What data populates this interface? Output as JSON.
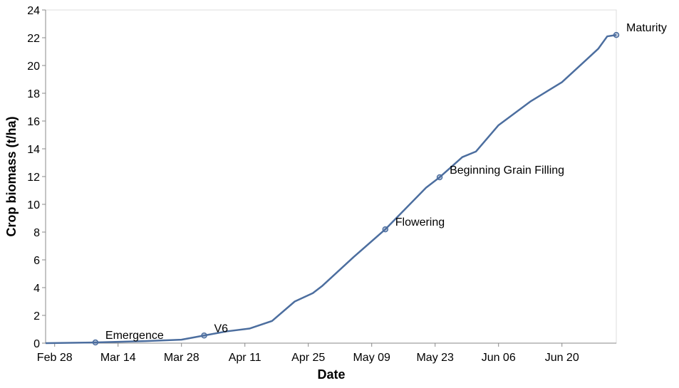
{
  "chart_data": {
    "type": "line",
    "x_label": "Date",
    "y_label": "Crop biomass (t/ha)",
    "xlim": [
      "02-26",
      "07-02"
    ],
    "ylim": [
      0,
      24
    ],
    "xticks": [
      {
        "value": "02-28",
        "label": "Feb 28"
      },
      {
        "value": "03-14",
        "label": "Mar 14"
      },
      {
        "value": "03-28",
        "label": "Mar 28"
      },
      {
        "value": "04-11",
        "label": "Apr 11"
      },
      {
        "value": "04-25",
        "label": "Apr 25"
      },
      {
        "value": "05-09",
        "label": "May 09"
      },
      {
        "value": "05-23",
        "label": "May 23"
      },
      {
        "value": "06-06",
        "label": "Jun 06"
      },
      {
        "value": "06-20",
        "label": "Jun 20"
      }
    ],
    "yticks": [
      0,
      2,
      4,
      6,
      8,
      10,
      12,
      14,
      16,
      18,
      20,
      22,
      24
    ],
    "grid": false,
    "series": [
      {
        "color": "#4c6e9f",
        "x": [
          "02-26",
          "03-09",
          "03-20",
          "03-28",
          "04-02",
          "04-07",
          "04-12",
          "04-17",
          "04-22",
          "04-26",
          "04-28",
          "05-05",
          "05-12",
          "05-15",
          "05-21",
          "05-24",
          "05-29",
          "06-01",
          "06-06",
          "06-13",
          "06-20",
          "06-25",
          "06-28",
          "06-30",
          "07-02"
        ],
        "values": [
          0,
          0.05,
          0.15,
          0.25,
          0.55,
          0.85,
          1.05,
          1.6,
          3.0,
          3.6,
          4.1,
          6.2,
          8.2,
          9.2,
          11.2,
          11.95,
          13.4,
          13.8,
          15.7,
          17.4,
          18.8,
          20.3,
          21.2,
          22.1,
          22.2
        ]
      }
    ],
    "stages": {
      "color": "#4c6e9f",
      "x": [
        "03-09",
        "04-02",
        "05-12",
        "05-24",
        "07-02"
      ],
      "values": [
        0.05,
        0.55,
        8.2,
        11.95,
        22.2
      ],
      "labels": [
        "Emergence",
        "V6",
        "Flowering",
        "Beginning Grain Filling",
        "Maturity"
      ]
    }
  }
}
